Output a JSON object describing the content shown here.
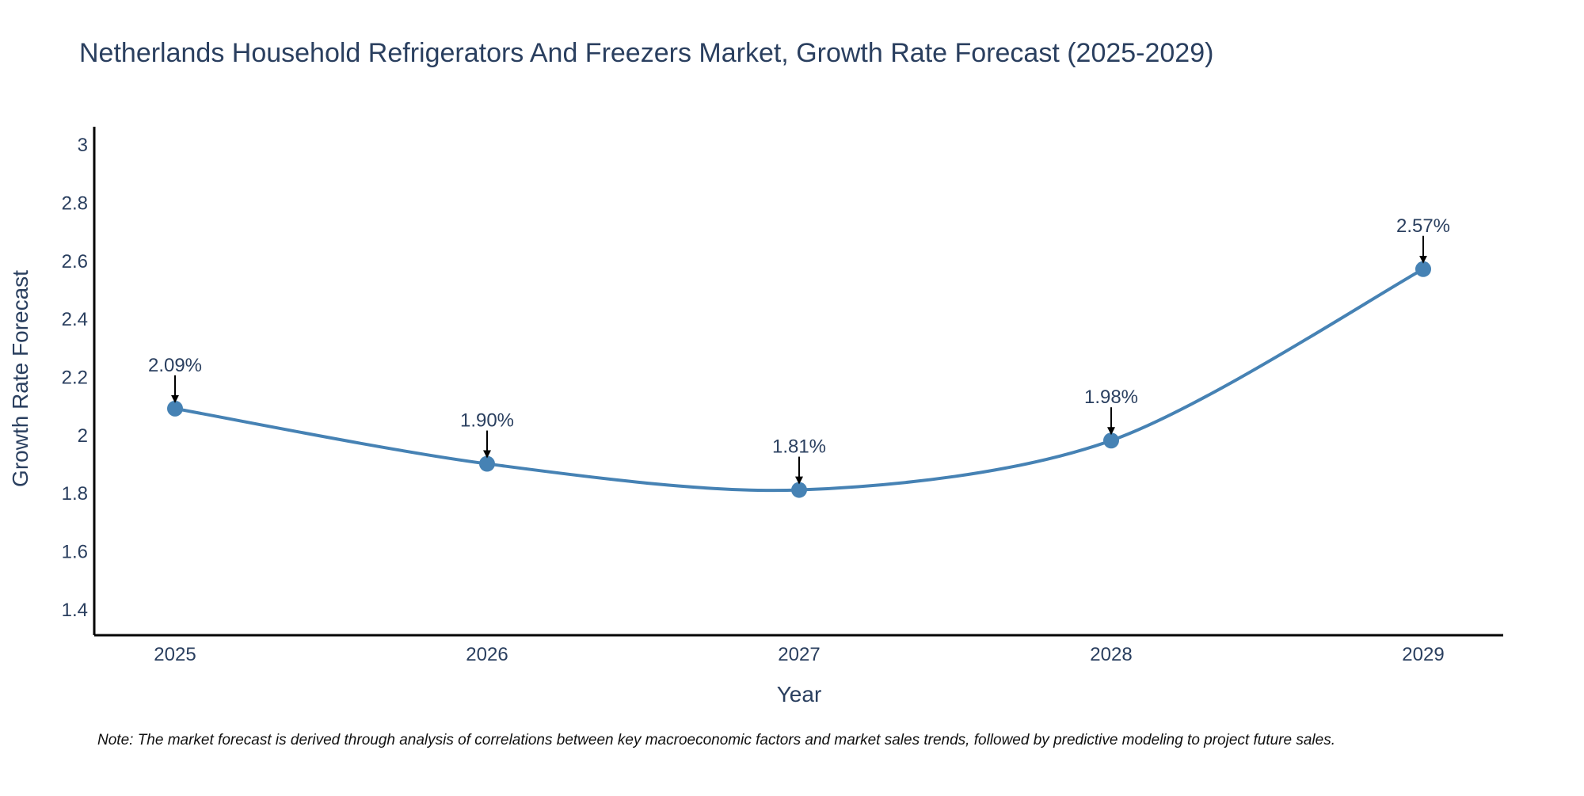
{
  "chart_data": {
    "type": "line",
    "title": "Netherlands Household Refrigerators And Freezers Market, Growth Rate Forecast (2025-2029)",
    "xlabel": "Year",
    "ylabel": "Growth Rate Forecast",
    "categories": [
      "2025",
      "2026",
      "2027",
      "2028",
      "2029"
    ],
    "values": [
      2.09,
      1.9,
      1.81,
      1.98,
      2.57
    ],
    "data_labels": [
      "2.09%",
      "1.90%",
      "1.81%",
      "1.98%",
      "2.57%"
    ],
    "ylim": [
      1.31,
      3.06
    ],
    "yticks": [
      {
        "value": 1.4,
        "label": "1.4"
      },
      {
        "value": 1.6,
        "label": "1.6"
      },
      {
        "value": 1.8,
        "label": "1.8"
      },
      {
        "value": 2.0,
        "label": "2"
      },
      {
        "value": 2.2,
        "label": "2.2"
      },
      {
        "value": 2.4,
        "label": "2.4"
      },
      {
        "value": 2.6,
        "label": "2.6"
      },
      {
        "value": 2.8,
        "label": "2.8"
      },
      {
        "value": 3.0,
        "label": "3"
      }
    ],
    "grid": false,
    "line_shape": "spline",
    "series_color": "#4682b4",
    "note": "Note: The market forecast is derived through analysis of correlations between key macroeconomic factors and market sales trends, followed by predictive modeling to project future sales."
  }
}
